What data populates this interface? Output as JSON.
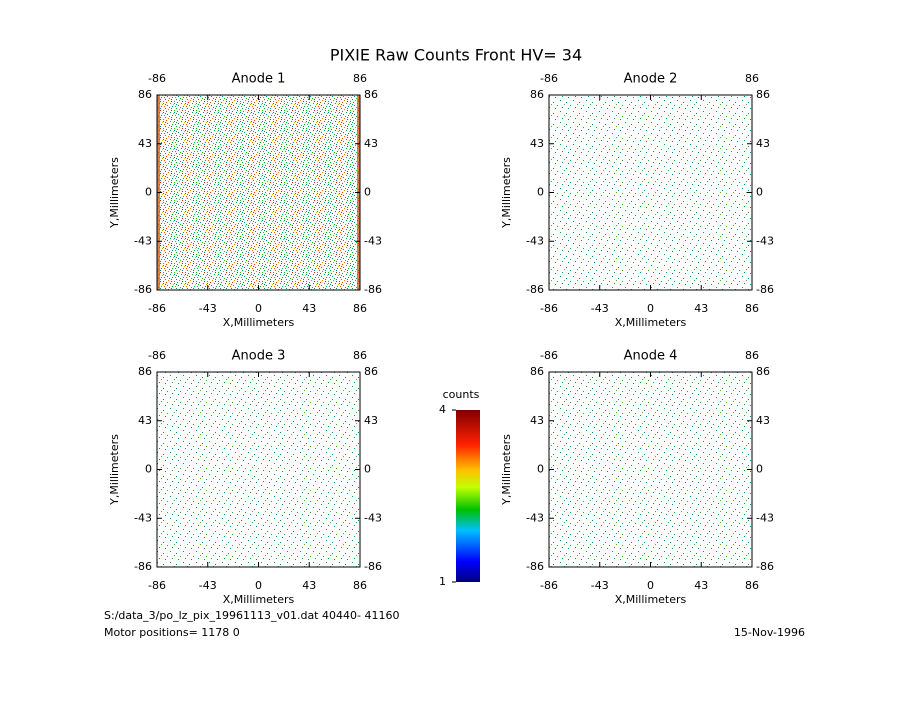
{
  "title": "PIXIE Raw Counts Front HV= 34",
  "chart_data": [
    {
      "type": "heatmap",
      "title": "Anode 1",
      "x_label": "X,Millimeters",
      "y_label": "Y,Millimeters",
      "xlim": [
        -86,
        86
      ],
      "ylim": [
        -86,
        86
      ],
      "xticks": [
        -86,
        -43,
        0,
        43,
        86
      ],
      "yticks": [
        -86,
        -43,
        0,
        43,
        86
      ]
    },
    {
      "type": "heatmap",
      "title": "Anode 2",
      "x_label": "X,Millimeters",
      "y_label": "Y,Millimeters",
      "xlim": [
        -86,
        86
      ],
      "ylim": [
        -86,
        86
      ],
      "xticks": [
        -86,
        -43,
        0,
        43,
        86
      ],
      "yticks": [
        -86,
        -43,
        0,
        43,
        86
      ]
    },
    {
      "type": "heatmap",
      "title": "Anode 3",
      "x_label": "X,Millimeters",
      "y_label": "Y,Millimeters",
      "xlim": [
        -86,
        86
      ],
      "ylim": [
        -86,
        86
      ],
      "xticks": [
        -86,
        -43,
        0,
        43,
        86
      ],
      "yticks": [
        -86,
        -43,
        0,
        43,
        86
      ]
    },
    {
      "type": "heatmap",
      "title": "Anode 4",
      "x_label": "X,Millimeters",
      "y_label": "Y,Millimeters",
      "xlim": [
        -86,
        86
      ],
      "ylim": [
        -86,
        86
      ],
      "xticks": [
        -86,
        -43,
        0,
        43,
        86
      ],
      "yticks": [
        -86,
        -43,
        0,
        43,
        86
      ]
    }
  ],
  "colorbar": {
    "label": "counts",
    "lim": [
      1,
      4
    ],
    "ticks": [
      1,
      4
    ]
  },
  "footer": {
    "file": "S:/data_3/po_lz_pix_19961113_v01.dat   40440- 41160",
    "motor": "Motor positions= 1178 0",
    "date": "15-Nov-1996"
  }
}
